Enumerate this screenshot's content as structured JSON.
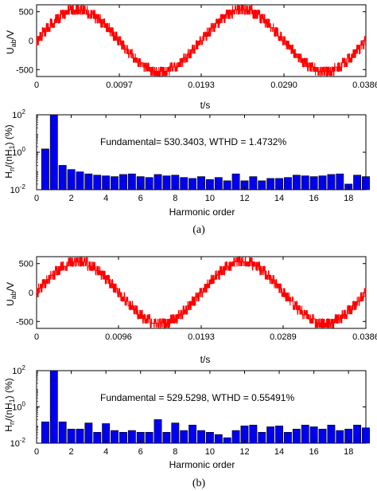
{
  "panels": [
    {
      "caption": "(a)",
      "wave": {
        "type": "line",
        "color": "#ff0000",
        "ylabel_main": "U",
        "ylabel_sub": "ab",
        "ylabel_tail": "/V",
        "xlabel": "t/s",
        "xlim": [
          0,
          0.0386
        ],
        "ylim": [
          -620,
          620
        ],
        "xticks": [
          0,
          0.0097,
          0.0193,
          0.029,
          0.0386
        ],
        "xtick_labels": [
          "0",
          "0.0097",
          "0.0193",
          "0.0290",
          "0.0386"
        ],
        "yticks": [
          -500,
          0,
          500
        ],
        "ytick_labels": [
          "-500",
          "0",
          "500"
        ],
        "peak": 530,
        "period": 0.0193,
        "step_levels": [
          75,
          150,
          225,
          300,
          380,
          455,
          530
        ],
        "switching_band": 0.004
      },
      "spectrum": {
        "type": "bar",
        "color": "#0000ee",
        "log_scale": true,
        "xlabel": "Harmonic order",
        "ylabel_main": "H",
        "ylabel_n": "n",
        "ylabel_mid": "/(nH",
        "ylabel_one": "1",
        "ylabel_tail": ") (%)",
        "annotation": "Fundamental= 530.3403, WTHD = 1.4732%",
        "ylim": [
          0.01,
          100
        ],
        "yticks": [
          0.01,
          1,
          100
        ],
        "ytick_base": "10",
        "ytick_exps": [
          "-2",
          "0",
          "2"
        ],
        "xticks": [
          0,
          2,
          4,
          6,
          8,
          10,
          12,
          14,
          16,
          18
        ],
        "xtick_labels": [
          "0",
          "2",
          "4",
          "6",
          "8",
          "10",
          "12",
          "14",
          "16",
          "18"
        ],
        "orders": [
          0.5,
          1,
          1.5,
          2,
          2.5,
          3,
          3.5,
          4,
          4.5,
          5,
          5.5,
          6,
          6.5,
          7,
          7.5,
          8,
          8.5,
          9,
          9.5,
          10,
          10.5,
          11,
          11.5,
          12,
          12.5,
          13,
          13.5,
          14,
          14.5,
          15,
          15.5,
          16,
          16.5,
          17,
          17.5,
          18,
          18.5,
          19
        ],
        "values": [
          1.5,
          100,
          0.2,
          0.12,
          0.09,
          0.07,
          0.06,
          0.055,
          0.05,
          0.065,
          0.07,
          0.05,
          0.045,
          0.065,
          0.055,
          0.06,
          0.045,
          0.04,
          0.05,
          0.035,
          0.045,
          0.03,
          0.07,
          0.03,
          0.05,
          0.03,
          0.04,
          0.04,
          0.045,
          0.06,
          0.055,
          0.05,
          0.055,
          0.065,
          0.07,
          0.02,
          0.06,
          0.05
        ]
      }
    },
    {
      "caption": "(b)",
      "wave": {
        "type": "line",
        "color": "#ff0000",
        "ylabel_main": "U",
        "ylabel_sub": "ab",
        "ylabel_tail": "/V",
        "xlabel": "t/s",
        "xlim": [
          0,
          0.0386
        ],
        "ylim": [
          -620,
          620
        ],
        "xticks": [
          0,
          0.0096,
          0.0193,
          0.0289,
          0.0386
        ],
        "xtick_labels": [
          "0",
          "0.0096",
          "0.0193",
          "0.0289",
          "0.0386"
        ],
        "yticks": [
          -500,
          0,
          500
        ],
        "ytick_labels": [
          "-500",
          "0",
          "500"
        ],
        "peak": 530,
        "period": 0.0193,
        "step_levels": [
          75,
          150,
          225,
          300,
          380,
          455,
          530
        ],
        "switching_band": 0.003
      },
      "spectrum": {
        "type": "bar",
        "color": "#0000ee",
        "log_scale": true,
        "xlabel": "Harmonic order",
        "ylabel_main": "H",
        "ylabel_n": "n",
        "ylabel_mid": "/(nH",
        "ylabel_one": "1",
        "ylabel_tail": ") (%)",
        "annotation": "Fundamental = 529.5298, WTHD = 0.55491%",
        "ylim": [
          0.01,
          100
        ],
        "yticks": [
          0.01,
          1,
          100
        ],
        "ytick_base": "10",
        "ytick_exps": [
          "-2",
          "0",
          "2"
        ],
        "xticks": [
          0,
          2,
          4,
          6,
          8,
          10,
          12,
          14,
          16,
          18
        ],
        "xtick_labels": [
          "0",
          "2",
          "4",
          "6",
          "8",
          "10",
          "12",
          "14",
          "16",
          "18"
        ],
        "orders": [
          0.5,
          1,
          1.5,
          2,
          2.5,
          3,
          3.5,
          4,
          4.5,
          5,
          5.5,
          6,
          6.5,
          7,
          7.5,
          8,
          8.5,
          9,
          9.5,
          10,
          10.5,
          11,
          11.5,
          12,
          12.5,
          13,
          13.5,
          14,
          14.5,
          15,
          15.5,
          16,
          16.5,
          17,
          17.5,
          18,
          18.5,
          19
        ],
        "values": [
          0.15,
          100,
          0.15,
          0.06,
          0.06,
          0.13,
          0.04,
          0.12,
          0.05,
          0.04,
          0.05,
          0.04,
          0.04,
          0.2,
          0.04,
          0.13,
          0.05,
          0.1,
          0.05,
          0.04,
          0.03,
          0.02,
          0.05,
          0.09,
          0.1,
          0.04,
          0.08,
          0.09,
          0.04,
          0.06,
          0.1,
          0.08,
          0.06,
          0.1,
          0.05,
          0.06,
          0.1,
          0.07
        ]
      }
    }
  ]
}
